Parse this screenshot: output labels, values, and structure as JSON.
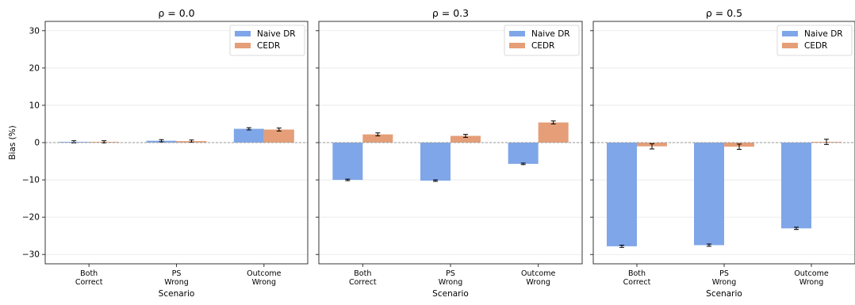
{
  "chart_data": {
    "type": "bar",
    "ylabel": "Bias (%)",
    "xlabel": "Scenario",
    "ylim": [
      -32.5,
      32.5
    ],
    "yticks": [
      -30,
      -20,
      -10,
      0,
      10,
      20,
      30
    ],
    "grid": "horizontal",
    "legend_position": "top-right",
    "categories": [
      "Both\nCorrect",
      "PS\nWrong",
      "Outcome\nWrong"
    ],
    "colors": {
      "Naive DR": "#7fa6e8",
      "CEDR": "#e59e77"
    },
    "panels": [
      {
        "title": "ρ = 0.0",
        "series": [
          {
            "name": "Naive DR",
            "values": [
              0.2,
              0.5,
              3.7
            ],
            "errors": [
              0.3,
              0.3,
              0.3
            ]
          },
          {
            "name": "CEDR",
            "values": [
              0.2,
              0.4,
              3.5
            ],
            "errors": [
              0.3,
              0.3,
              0.4
            ]
          }
        ]
      },
      {
        "title": "ρ = 0.3",
        "series": [
          {
            "name": "Naive DR",
            "values": [
              -10.0,
              -10.2,
              -5.7
            ],
            "errors": [
              0.2,
              0.2,
              0.2
            ]
          },
          {
            "name": "CEDR",
            "values": [
              2.2,
              1.8,
              5.4
            ],
            "errors": [
              0.4,
              0.4,
              0.4
            ]
          }
        ]
      },
      {
        "title": "ρ = 0.5",
        "series": [
          {
            "name": "Naive DR",
            "values": [
              -27.8,
              -27.5,
              -23.0
            ],
            "errors": [
              0.3,
              0.3,
              0.3
            ]
          },
          {
            "name": "CEDR",
            "values": [
              -1.0,
              -1.1,
              0.2
            ],
            "errors": [
              0.7,
              0.7,
              0.7
            ]
          }
        ]
      }
    ]
  }
}
